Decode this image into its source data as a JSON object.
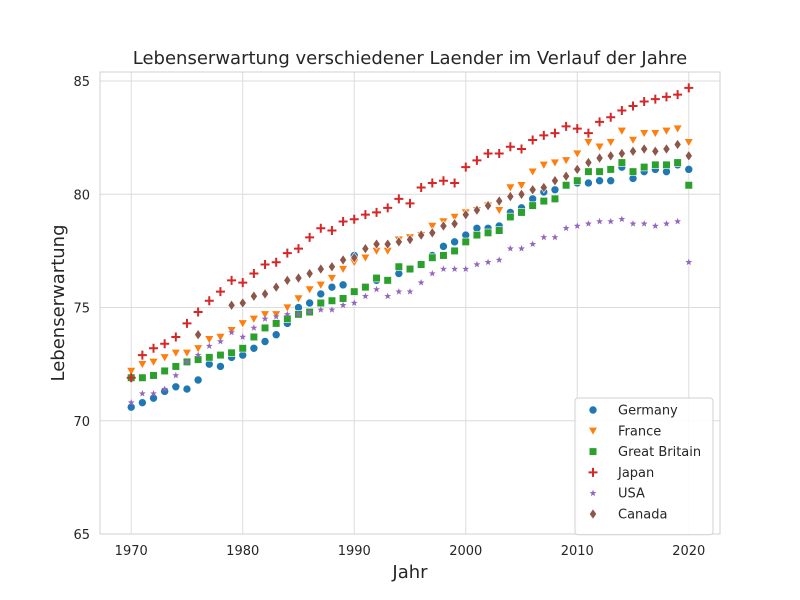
{
  "chart_data": {
    "type": "scatter",
    "title": "Lebenserwartung verschiedener Laender im Verlauf der Jahre",
    "xlabel": "Jahr",
    "ylabel": "Lebenserwartung",
    "xlim": [
      1967.2,
      2022.8
    ],
    "ylim": [
      65,
      85.4
    ],
    "xticks": [
      1970,
      1980,
      1990,
      2000,
      2010,
      2020
    ],
    "yticks": [
      65,
      70,
      75,
      80,
      85
    ],
    "grid": true,
    "legend_position": "lower-right",
    "x_start": 1970,
    "series": [
      {
        "name": "Germany",
        "color": "#1f77b4",
        "marker": "circle",
        "values": [
          70.6,
          70.8,
          71.0,
          71.3,
          71.5,
          71.4,
          71.8,
          72.5,
          72.4,
          72.8,
          72.9,
          73.2,
          73.5,
          73.8,
          74.3,
          75.0,
          75.2,
          75.6,
          75.9,
          76.0,
          77.3,
          75.9,
          76.2,
          76.2,
          76.5,
          76.7,
          76.9,
          77.3,
          77.7,
          77.9,
          78.2,
          78.5,
          78.5,
          78.6,
          79.2,
          79.4,
          79.8,
          80.1,
          80.2,
          80.4,
          80.5,
          80.5,
          80.6,
          80.6,
          81.2,
          80.7,
          81.0,
          81.1,
          81.0,
          81.3,
          81.1
        ]
      },
      {
        "name": "France",
        "color": "#ff7f0e",
        "marker": "triangle-down",
        "values": [
          72.2,
          72.5,
          72.6,
          72.8,
          73.0,
          73.0,
          73.2,
          73.6,
          73.7,
          74.0,
          74.3,
          74.5,
          74.7,
          74.7,
          75.0,
          75.4,
          75.8,
          76.0,
          76.3,
          76.7,
          77.0,
          77.2,
          77.5,
          77.5,
          78.0,
          78.1,
          78.2,
          78.6,
          78.8,
          79.0,
          79.2,
          79.3,
          79.5,
          79.3,
          80.3,
          80.4,
          81.0,
          81.3,
          81.4,
          81.5,
          81.8,
          82.3,
          82.1,
          82.3,
          82.8,
          82.4,
          82.7,
          82.7,
          82.8,
          82.9,
          82.3
        ]
      },
      {
        "name": "Great Britain",
        "color": "#2ca02c",
        "marker": "square",
        "values": [
          71.9,
          71.9,
          72.0,
          72.2,
          72.4,
          72.6,
          72.7,
          72.8,
          72.9,
          73.0,
          73.2,
          73.7,
          74.1,
          74.3,
          74.5,
          74.7,
          74.8,
          75.2,
          75.3,
          75.4,
          75.7,
          75.9,
          76.3,
          76.2,
          76.8,
          76.7,
          76.9,
          77.2,
          77.3,
          77.5,
          77.9,
          78.2,
          78.3,
          78.4,
          79.0,
          79.2,
          79.5,
          79.7,
          79.8,
          80.4,
          80.6,
          81.0,
          81.0,
          81.1,
          81.4,
          81.0,
          81.2,
          81.3,
          81.3,
          81.4,
          80.4
        ]
      },
      {
        "name": "Japan",
        "color": "#d62728",
        "marker": "plus",
        "values": [
          71.9,
          72.9,
          73.2,
          73.4,
          73.7,
          74.3,
          74.8,
          75.3,
          75.7,
          76.2,
          76.1,
          76.5,
          76.9,
          77.0,
          77.4,
          77.6,
          78.1,
          78.5,
          78.4,
          78.8,
          78.9,
          79.1,
          79.2,
          79.4,
          79.8,
          79.6,
          80.3,
          80.5,
          80.6,
          80.5,
          81.2,
          81.5,
          81.8,
          81.8,
          82.1,
          82.0,
          82.4,
          82.6,
          82.7,
          83.0,
          82.9,
          82.7,
          83.2,
          83.4,
          83.7,
          83.9,
          84.1,
          84.2,
          84.3,
          84.4,
          84.7
        ]
      },
      {
        "name": "USA",
        "color": "#9467bd",
        "marker": "star",
        "values": [
          70.8,
          71.2,
          71.2,
          71.4,
          72.0,
          72.6,
          72.9,
          73.3,
          73.5,
          73.9,
          73.7,
          74.1,
          74.5,
          74.6,
          74.7,
          74.7,
          74.8,
          74.9,
          74.9,
          75.1,
          75.2,
          75.5,
          75.8,
          75.5,
          75.7,
          75.7,
          76.1,
          76.5,
          76.7,
          76.7,
          76.7,
          76.9,
          77.0,
          77.1,
          77.6,
          77.6,
          77.8,
          78.1,
          78.1,
          78.5,
          78.6,
          78.7,
          78.8,
          78.8,
          78.9,
          78.7,
          78.7,
          78.6,
          78.7,
          78.8,
          77.0
        ]
      },
      {
        "name": "Canada",
        "color": "#8c564b",
        "marker": "diamond",
        "values": [
          null,
          null,
          null,
          null,
          null,
          null,
          73.8,
          null,
          null,
          75.1,
          75.2,
          75.5,
          75.6,
          75.9,
          76.2,
          76.3,
          76.5,
          76.7,
          76.8,
          77.1,
          77.2,
          77.6,
          77.8,
          77.8,
          77.9,
          78.0,
          78.2,
          78.3,
          78.6,
          78.7,
          79.1,
          79.3,
          79.5,
          79.7,
          79.9,
          80.0,
          80.2,
          80.3,
          80.6,
          80.8,
          81.1,
          81.4,
          81.6,
          81.7,
          81.8,
          81.9,
          82.0,
          81.9,
          82.0,
          82.2,
          81.7
        ]
      }
    ]
  }
}
